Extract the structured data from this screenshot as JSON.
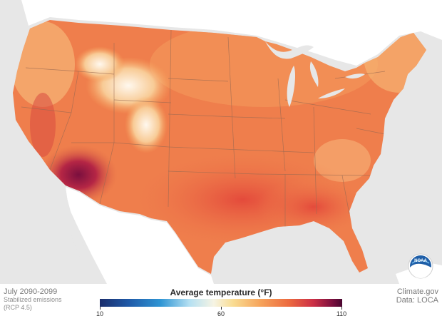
{
  "map": {
    "period": "July 2090-2099",
    "scenario_line1": "Stabilized emissions",
    "scenario_line2": "(RCP 4.5)",
    "agency_logo_text": "NOAA",
    "legend": {
      "title": "Average temperature (°F)",
      "ticks": [
        "10",
        "60",
        "110"
      ],
      "min": 10,
      "mid": 60,
      "max": 110,
      "colors": [
        "#1b2d6b",
        "#2f95d4",
        "#f6f4e4",
        "#f6a55c",
        "#cc2f46",
        "#4a0630"
      ]
    },
    "credit_line1": "Climate.gov",
    "credit_line2": "Data: LOCA",
    "colors": {
      "ocean": "#e7e7e7",
      "land_other": "#ffffff",
      "us_base": "#ef7e4c",
      "state_border": "#9a6a52"
    }
  }
}
